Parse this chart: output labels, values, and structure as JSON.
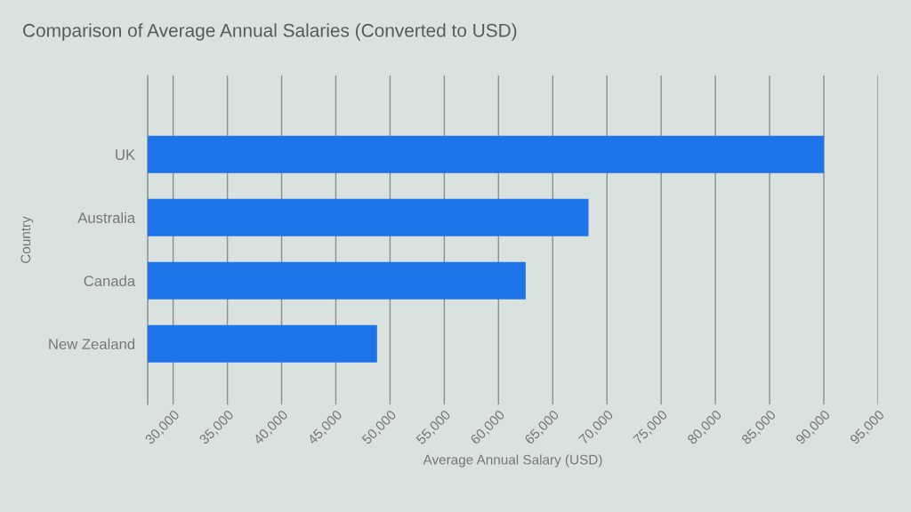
{
  "chart_data": {
    "type": "bar",
    "orientation": "horizontal",
    "title": "Comparison of Average Annual Salaries (Converted to USD)",
    "xlabel": "Average Annual Salary (USD)",
    "ylabel": "Country",
    "categories": [
      "UK",
      "Australia",
      "Canada",
      "New Zealand"
    ],
    "values": [
      90000,
      68300,
      62500,
      48800
    ],
    "color": "#1d73e8",
    "xlim": [
      27650,
      95000
    ],
    "xticks": [
      {
        "value": 30000,
        "label": "30,000"
      },
      {
        "value": 35000,
        "label": "35,000"
      },
      {
        "value": 40000,
        "label": "40,000"
      },
      {
        "value": 45000,
        "label": "45,000"
      },
      {
        "value": 50000,
        "label": "50,000"
      },
      {
        "value": 55000,
        "label": "55,000"
      },
      {
        "value": 60000,
        "label": "60,000"
      },
      {
        "value": 65000,
        "label": "65,000"
      },
      {
        "value": 70000,
        "label": "70,000"
      },
      {
        "value": 75000,
        "label": "75,000"
      },
      {
        "value": 80000,
        "label": "80,000"
      },
      {
        "value": 85000,
        "label": "85,000"
      },
      {
        "value": 90000,
        "label": "90,000"
      },
      {
        "value": 95000,
        "label": "95,000"
      }
    ],
    "grid": "x",
    "legend": false
  }
}
